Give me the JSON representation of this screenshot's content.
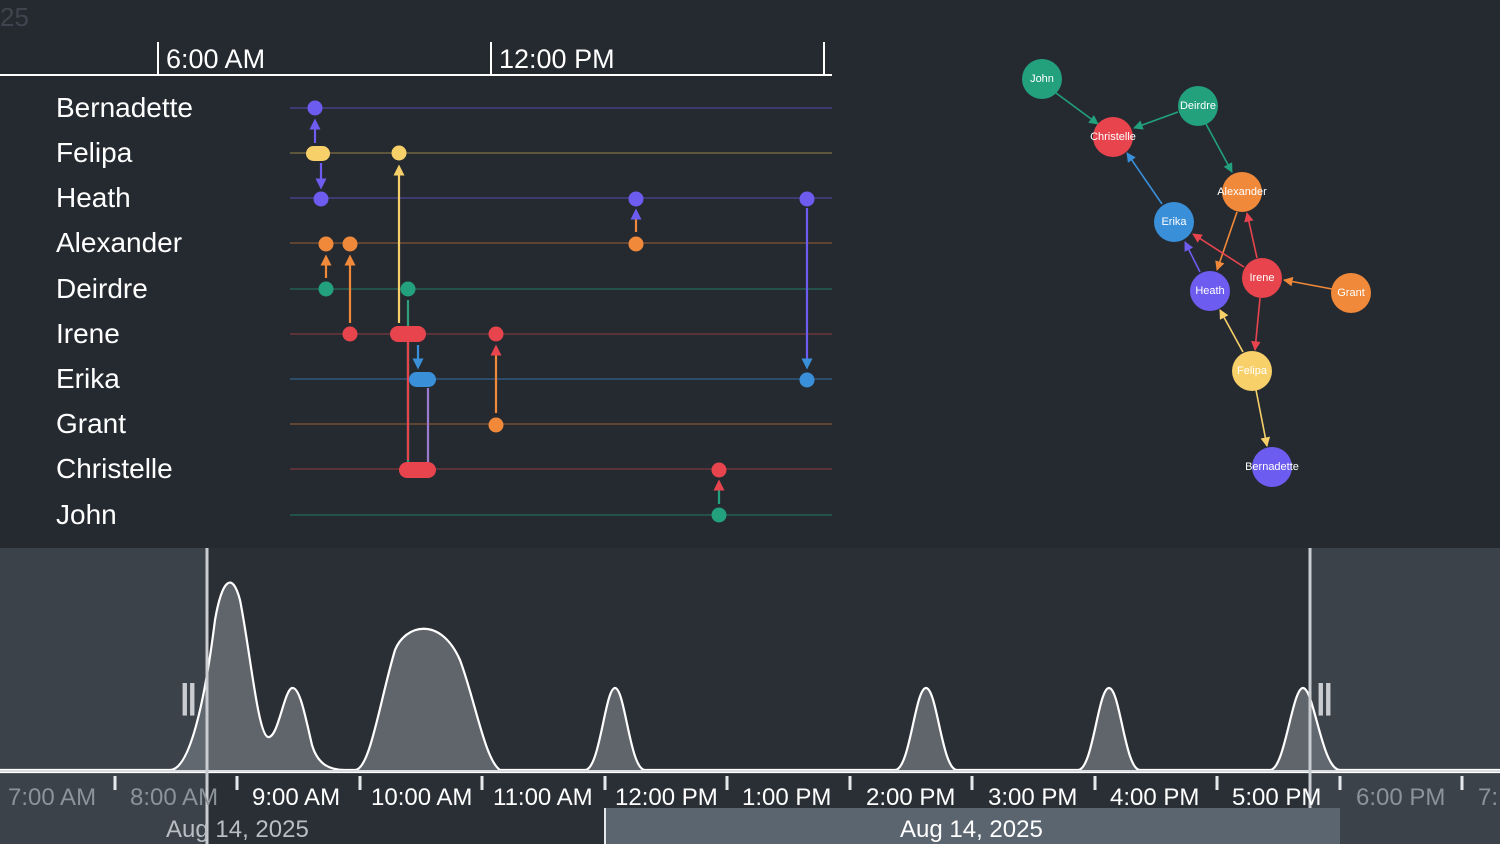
{
  "header": {
    "year_fragment": "25"
  },
  "time_axis": {
    "labels": [
      "6:00 AM",
      "12:00 PM"
    ]
  },
  "people": [
    "Bernadette",
    "Felipa",
    "Heath",
    "Alexander",
    "Deirdre",
    "Irene",
    "Erika",
    "Grant",
    "Christelle",
    "John"
  ],
  "network": {
    "nodes": [
      {
        "name": "John",
        "color": "#22a17c"
      },
      {
        "name": "Deirdre",
        "color": "#22a17c"
      },
      {
        "name": "Christelle",
        "color": "#e8444d"
      },
      {
        "name": "Alexander",
        "color": "#f0893a"
      },
      {
        "name": "Erika",
        "color": "#3a8fd9"
      },
      {
        "name": "Irene",
        "color": "#e8444d"
      },
      {
        "name": "Grant",
        "color": "#f0893a"
      },
      {
        "name": "Heath",
        "color": "#6d5cf0"
      },
      {
        "name": "Felipa",
        "color": "#f7d06a"
      },
      {
        "name": "Bernadette",
        "color": "#6d5cf0"
      }
    ]
  },
  "timeline": {
    "ticks": [
      "7:00 AM",
      "8:00 AM",
      "9:00 AM",
      "10:00 AM",
      "11:00 AM",
      "12:00 PM",
      "1:00 PM",
      "2:00 PM",
      "3:00 PM",
      "4:00 PM",
      "5:00 PM",
      "6:00 PM",
      "7:"
    ],
    "dates": [
      "Aug 14, 2025",
      "Aug 14, 2025"
    ],
    "handle_left": "||",
    "handle_right": "||"
  },
  "colors": {
    "background": "#252a31",
    "purple": "#6d5cf0",
    "yellow": "#f7d06a",
    "orange": "#f0893a",
    "green": "#22a17c",
    "red": "#e8444d",
    "blue": "#3a8fd9",
    "timeline_bg": "#3b424a",
    "timeline_sel": "#2a2f36"
  }
}
